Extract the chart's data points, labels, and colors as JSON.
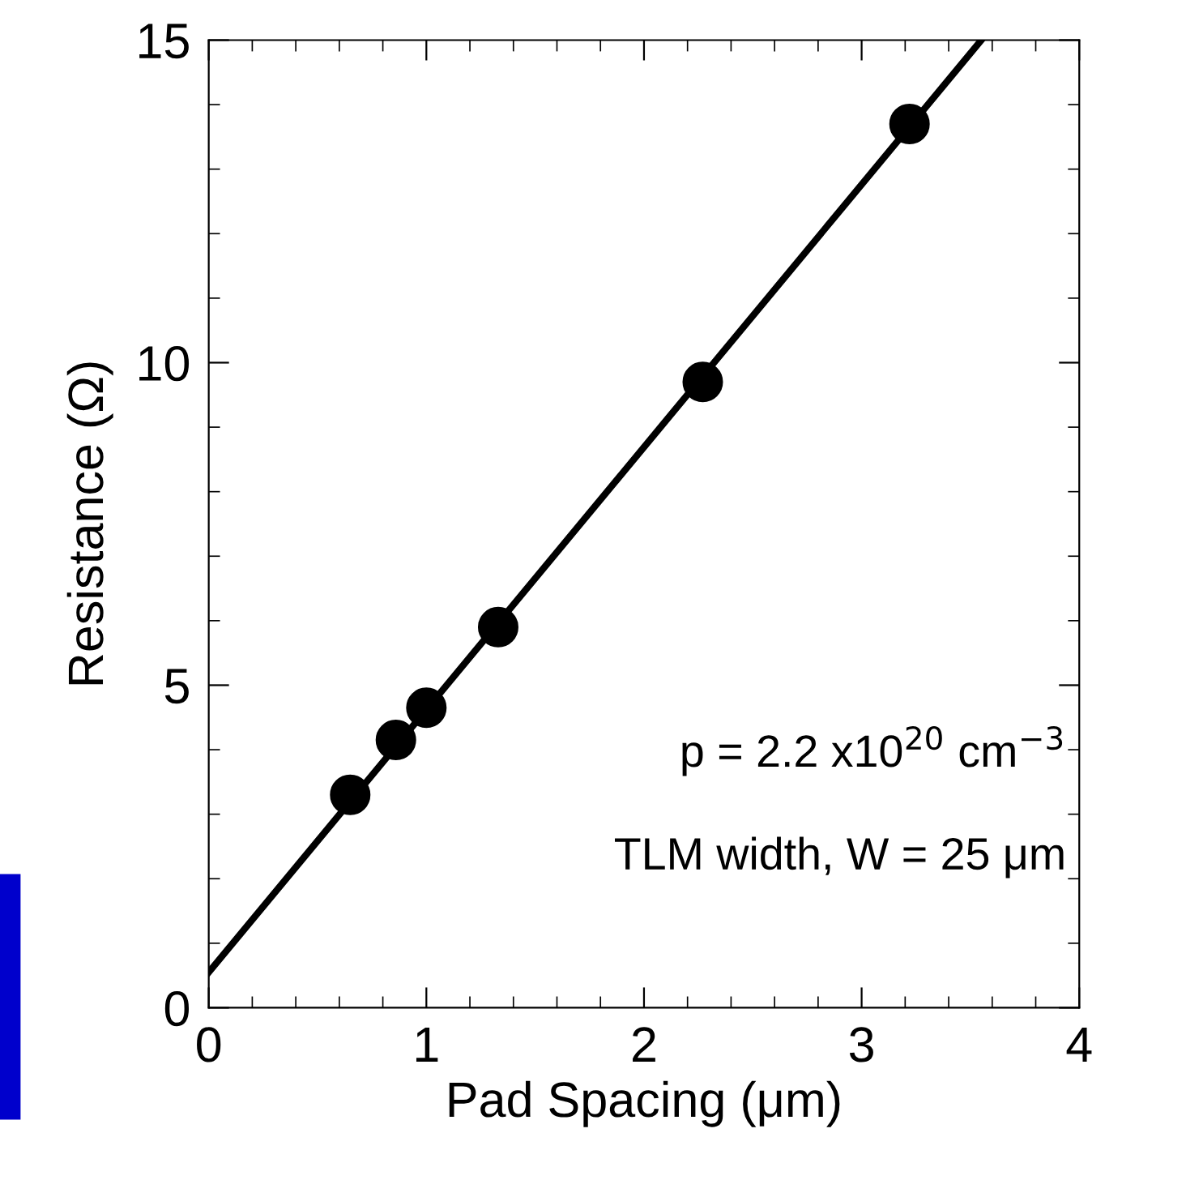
{
  "chart_data": {
    "type": "scatter",
    "xlabel": "Pad Spacing (μm)",
    "ylabel": "Resistance (Ω)",
    "xlim": [
      0,
      4
    ],
    "ylim": [
      0,
      15
    ],
    "xticks": [
      0,
      1,
      2,
      3,
      4
    ],
    "yticks": [
      0,
      5,
      10,
      15
    ],
    "grid": false,
    "marker": "circle",
    "series": [
      {
        "color": "#000000",
        "x": [
          0.65,
          0.86,
          1.0,
          1.33,
          2.27,
          3.22
        ],
        "values": [
          3.3,
          4.15,
          4.65,
          5.9,
          9.7,
          13.7
        ]
      },
      {
        "type": "line",
        "color": "#000000",
        "x": [
          0,
          3.55
        ],
        "values": [
          0.55,
          15
        ],
        "line_style": "solid",
        "marker": "none"
      }
    ],
    "annotations": [
      "p = 2.2 x10$^{20}$ cm$^{−3}$",
      "TLM width, W = 25 μm"
    ]
  }
}
